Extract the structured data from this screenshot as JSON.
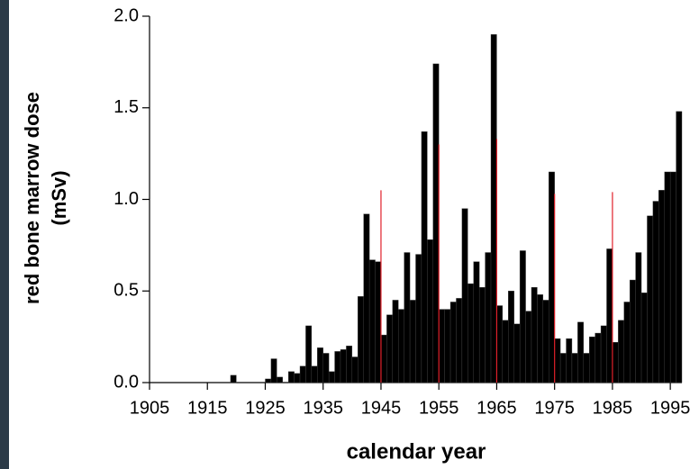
{
  "chart_data": {
    "type": "bar",
    "x_label": "calendar year",
    "y_label": [
      "red bone marrow dose",
      "(mSv)"
    ],
    "x": [
      1919,
      1925,
      1926,
      1927,
      1929,
      1930,
      1931,
      1932,
      1933,
      1934,
      1935,
      1936,
      1937,
      1938,
      1939,
      1940,
      1941,
      1942,
      1943,
      1944,
      1945,
      1946,
      1947,
      1948,
      1949,
      1950,
      1951,
      1952,
      1953,
      1954,
      1955,
      1956,
      1957,
      1958,
      1959,
      1960,
      1961,
      1962,
      1963,
      1964,
      1965,
      1966,
      1967,
      1968,
      1969,
      1970,
      1971,
      1972,
      1973,
      1974,
      1975,
      1976,
      1977,
      1978,
      1979,
      1980,
      1981,
      1982,
      1983,
      1984,
      1985,
      1986,
      1987,
      1988,
      1989,
      1990,
      1991,
      1992,
      1993,
      1994,
      1995,
      1996
    ],
    "values": [
      0.04,
      0.02,
      0.13,
      0.03,
      0.06,
      0.05,
      0.09,
      0.31,
      0.09,
      0.19,
      0.16,
      0.06,
      0.17,
      0.18,
      0.2,
      0.14,
      0.47,
      0.92,
      0.67,
      0.66,
      0.26,
      0.37,
      0.45,
      0.4,
      0.71,
      0.45,
      0.7,
      1.37,
      0.78,
      1.74,
      0.4,
      0.4,
      0.44,
      0.46,
      0.95,
      0.54,
      0.66,
      0.52,
      0.71,
      1.9,
      0.42,
      0.34,
      0.5,
      0.32,
      0.72,
      0.39,
      0.52,
      0.48,
      0.45,
      1.15,
      0.24,
      0.16,
      0.24,
      0.16,
      0.33,
      0.16,
      0.25,
      0.27,
      0.31,
      0.73,
      0.22,
      0.34,
      0.44,
      0.56,
      0.71,
      0.49,
      0.91,
      0.99,
      1.05,
      1.15,
      1.15,
      1.48
    ],
    "color": "#000000",
    "reference_lines": {
      "color": "#e0202a",
      "x": [
        1945,
        1955,
        1965,
        1975,
        1985
      ],
      "values": [
        1.05,
        1.3,
        1.33,
        1.03,
        1.04
      ]
    },
    "xlim": [
      1905,
      1997
    ],
    "xticks": [
      1905,
      1915,
      1925,
      1935,
      1945,
      1955,
      1965,
      1975,
      1985,
      1995
    ],
    "ylim": [
      0,
      2
    ],
    "yticks": [
      {
        "value": 0,
        "label": "0.0"
      },
      {
        "value": 0.5,
        "label": "0.5"
      },
      {
        "value": 1,
        "label": "1.0"
      },
      {
        "value": 1.5,
        "label": "1.5"
      },
      {
        "value": 2,
        "label": "2.0"
      }
    ]
  }
}
